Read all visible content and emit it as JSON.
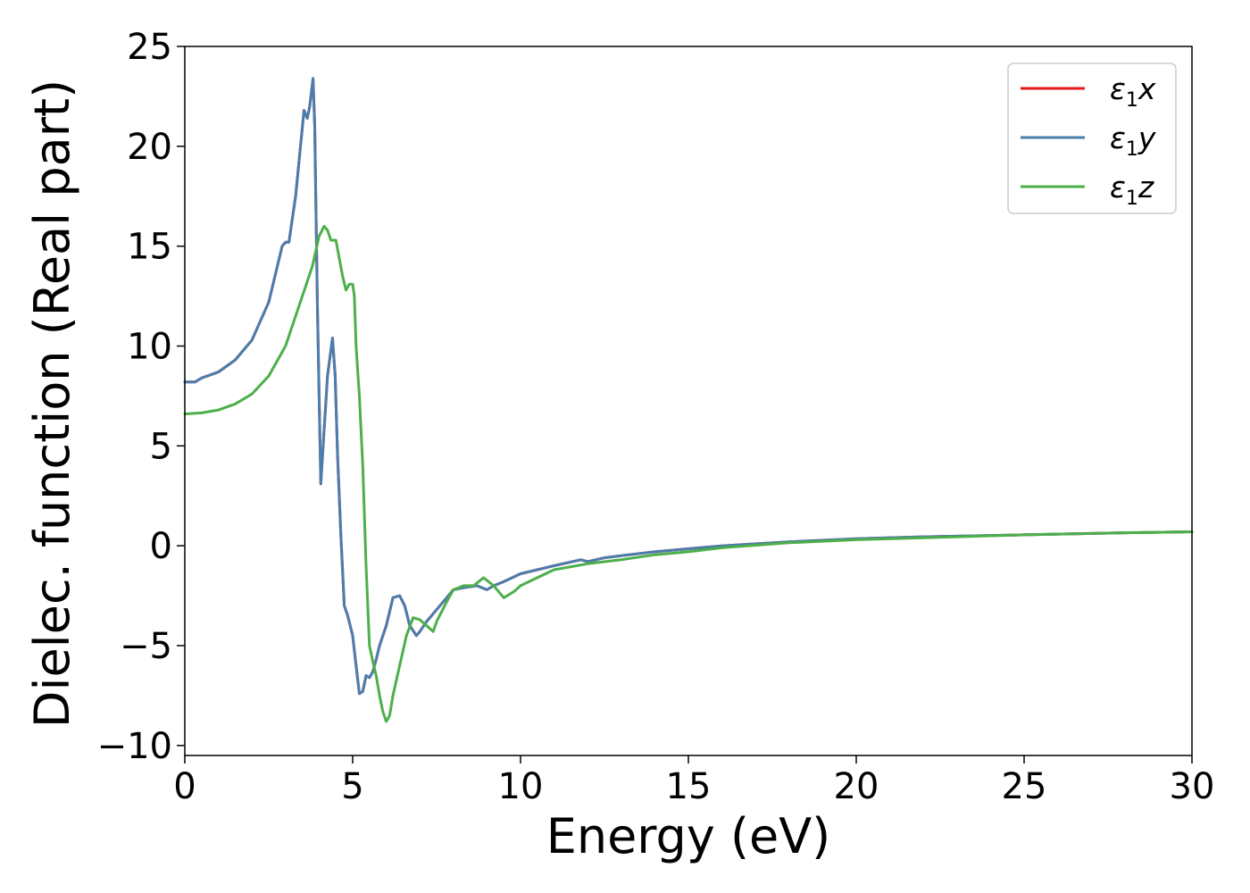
{
  "chart_data": {
    "type": "line",
    "xlabel": "Energy (eV)",
    "ylabel": "Dielec. function (Real part)",
    "xlim": [
      0,
      30
    ],
    "ylim": [
      -10.5,
      25
    ],
    "xticks": [
      0,
      5,
      10,
      15,
      20,
      25,
      30
    ],
    "yticks": [
      -10,
      -5,
      0,
      5,
      10,
      15,
      20,
      25
    ],
    "ytick_labels": [
      "−10",
      "−5",
      "0",
      "5",
      "10",
      "15",
      "20",
      "25"
    ],
    "grid": false,
    "legend_position": "top-right",
    "series": [
      {
        "name": "ε₁x",
        "legend_base": "ε",
        "legend_sub": "1",
        "legend_var": "x",
        "color": "#e41a1c",
        "x": [
          0,
          0.3,
          0.5,
          1.0,
          1.5,
          2.0,
          2.5,
          2.9,
          3.0,
          3.1,
          3.3,
          3.55,
          3.65,
          3.72,
          3.82,
          3.87,
          3.95,
          4.05,
          4.12,
          4.25,
          4.4,
          4.48,
          4.55,
          4.65,
          4.75,
          4.85,
          5.0,
          5.1,
          5.2,
          5.3,
          5.4,
          5.5,
          5.6,
          5.7,
          5.8,
          6.0,
          6.2,
          6.4,
          6.55,
          6.7,
          6.9,
          7.0,
          7.2,
          7.5,
          7.8,
          8.0,
          8.3,
          8.7,
          9.0,
          9.2,
          9.5,
          10.0,
          11.0,
          11.8,
          12.0,
          12.5,
          13.0,
          14.0,
          15.0,
          16.0,
          18.0,
          20.0,
          22.0,
          25.0,
          28.0,
          30.0
        ],
        "y": [
          8.2,
          8.2,
          8.4,
          8.7,
          9.3,
          10.3,
          12.2,
          15.0,
          15.2,
          15.2,
          17.5,
          21.8,
          21.4,
          22.0,
          23.4,
          21.0,
          12.0,
          3.1,
          5.0,
          8.5,
          10.4,
          8.5,
          4.5,
          0.5,
          -3.0,
          -3.5,
          -4.5,
          -6.0,
          -7.4,
          -7.3,
          -6.5,
          -6.6,
          -6.3,
          -5.7,
          -5.0,
          -4.0,
          -2.6,
          -2.5,
          -3.0,
          -4.0,
          -4.5,
          -4.3,
          -3.8,
          -3.2,
          -2.6,
          -2.2,
          -2.1,
          -2.0,
          -2.2,
          -2.0,
          -1.8,
          -1.4,
          -1.0,
          -0.7,
          -0.8,
          -0.6,
          -0.5,
          -0.3,
          -0.15,
          0.0,
          0.2,
          0.35,
          0.45,
          0.55,
          0.65,
          0.7
        ]
      },
      {
        "name": "ε₁y",
        "legend_base": "ε",
        "legend_sub": "1",
        "legend_var": "y",
        "color": "#4a7ead",
        "x": [
          0,
          0.3,
          0.5,
          1.0,
          1.5,
          2.0,
          2.5,
          2.9,
          3.0,
          3.1,
          3.3,
          3.55,
          3.65,
          3.72,
          3.82,
          3.87,
          3.95,
          4.05,
          4.12,
          4.25,
          4.4,
          4.48,
          4.55,
          4.65,
          4.75,
          4.85,
          5.0,
          5.1,
          5.2,
          5.3,
          5.4,
          5.5,
          5.6,
          5.7,
          5.8,
          6.0,
          6.2,
          6.4,
          6.55,
          6.7,
          6.9,
          7.0,
          7.2,
          7.5,
          7.8,
          8.0,
          8.3,
          8.7,
          9.0,
          9.2,
          9.5,
          10.0,
          11.0,
          11.8,
          12.0,
          12.5,
          13.0,
          14.0,
          15.0,
          16.0,
          18.0,
          20.0,
          22.0,
          25.0,
          28.0,
          30.0
        ],
        "y": [
          8.2,
          8.2,
          8.4,
          8.7,
          9.3,
          10.3,
          12.2,
          15.0,
          15.2,
          15.2,
          17.5,
          21.8,
          21.4,
          22.0,
          23.4,
          21.0,
          12.0,
          3.1,
          5.0,
          8.5,
          10.4,
          8.5,
          4.5,
          0.5,
          -3.0,
          -3.5,
          -4.5,
          -6.0,
          -7.4,
          -7.3,
          -6.5,
          -6.6,
          -6.3,
          -5.7,
          -5.0,
          -4.0,
          -2.6,
          -2.5,
          -3.0,
          -4.0,
          -4.5,
          -4.3,
          -3.8,
          -3.2,
          -2.6,
          -2.2,
          -2.1,
          -2.0,
          -2.2,
          -2.0,
          -1.8,
          -1.4,
          -1.0,
          -0.7,
          -0.8,
          -0.6,
          -0.5,
          -0.3,
          -0.15,
          0.0,
          0.2,
          0.35,
          0.45,
          0.55,
          0.65,
          0.7
        ]
      },
      {
        "name": "ε₁z",
        "legend_base": "ε",
        "legend_sub": "1",
        "legend_var": "z",
        "color": "#4daf4a",
        "x": [
          0,
          0.5,
          1.0,
          1.5,
          2.0,
          2.5,
          3.0,
          3.3,
          3.6,
          3.8,
          4.0,
          4.15,
          4.25,
          4.35,
          4.5,
          4.7,
          4.8,
          4.9,
          5.0,
          5.05,
          5.1,
          5.2,
          5.3,
          5.4,
          5.5,
          5.6,
          5.7,
          5.8,
          5.9,
          6.0,
          6.1,
          6.2,
          6.4,
          6.6,
          6.8,
          7.0,
          7.2,
          7.4,
          7.5,
          7.8,
          8.0,
          8.3,
          8.6,
          8.9,
          9.2,
          9.5,
          9.8,
          10.0,
          10.5,
          11.0,
          12.0,
          13.0,
          14.0,
          15.0,
          16.0,
          18.0,
          20.0,
          22.0,
          25.0,
          28.0,
          30.0
        ],
        "y": [
          6.6,
          6.65,
          6.8,
          7.1,
          7.6,
          8.5,
          10.0,
          11.5,
          13.0,
          14.0,
          15.5,
          16.0,
          15.8,
          15.3,
          15.3,
          13.5,
          12.8,
          13.1,
          13.1,
          12.5,
          10.0,
          7.5,
          4.0,
          -1.0,
          -5.0,
          -5.8,
          -6.5,
          -7.5,
          -8.3,
          -8.8,
          -8.5,
          -7.5,
          -6.0,
          -4.5,
          -3.6,
          -3.7,
          -4.0,
          -4.3,
          -3.8,
          -2.8,
          -2.2,
          -2.0,
          -2.0,
          -1.6,
          -2.0,
          -2.6,
          -2.3,
          -2.0,
          -1.6,
          -1.2,
          -0.9,
          -0.7,
          -0.45,
          -0.3,
          -0.1,
          0.15,
          0.3,
          0.4,
          0.55,
          0.65,
          0.7
        ]
      }
    ]
  }
}
